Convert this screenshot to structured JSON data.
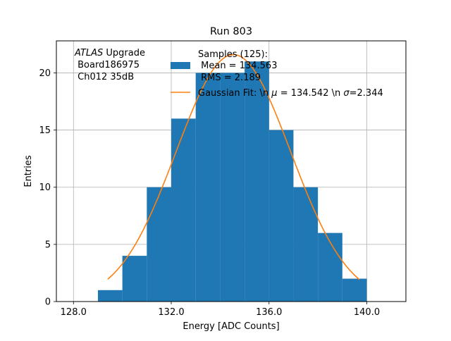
{
  "chart_data": {
    "type": "bar",
    "title": "Run 803",
    "xlabel": "Energy [ADC Counts]",
    "ylabel": "Entries",
    "xlim": [
      127.3,
      141.6
    ],
    "ylim": [
      0,
      22.8
    ],
    "grid": true,
    "x_ticks": [
      128.0,
      132.0,
      136.0,
      140.0
    ],
    "x_tick_labels": [
      "128.0",
      "132.0",
      "136.0",
      "140.0"
    ],
    "y_ticks": [
      0,
      5,
      10,
      15,
      20
    ],
    "y_tick_labels": [
      "0",
      "5",
      "10",
      "15",
      "20"
    ],
    "histogram": {
      "color": "#1f77b4",
      "bin_edges": [
        129,
        130,
        131,
        132,
        133,
        134,
        135,
        136,
        137,
        138,
        139,
        140
      ],
      "counts": [
        1,
        4,
        10,
        16,
        20,
        20,
        21,
        15,
        10,
        6,
        2
      ]
    },
    "fit": {
      "color": "#ff7f0e",
      "mu": 134.542,
      "sigma": 2.344,
      "amplitude": 21.6,
      "x_range": [
        129.4,
        139.7
      ]
    },
    "legend": {
      "placement": "top-center",
      "hist_label_lines": [
        "Samples (125):",
        " Mean = 134.563",
        " RMS = 2.189"
      ],
      "fit_label_prefix": "Gaussian Fit: \\n ",
      "fit_label_mu": " = 134.542 \\n ",
      "fit_label_sigma": "=2.344",
      "mu_symbol": "μ",
      "sigma_symbol": "σ"
    },
    "annotation": {
      "atlas": "ATLAS",
      "upgrade": " Upgrade",
      "line2": " Board186975",
      "line3": " Ch012 35dB"
    }
  }
}
